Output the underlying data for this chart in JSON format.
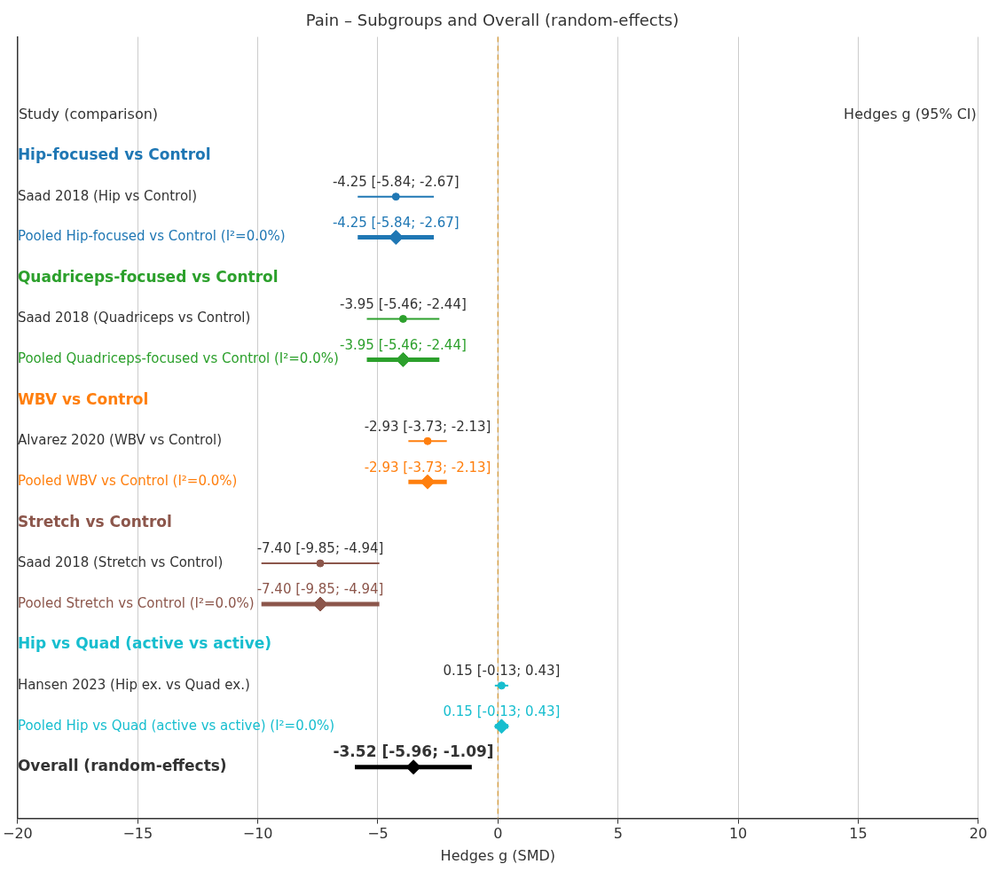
{
  "chart_data": {
    "type": "scatter",
    "orientation": "horizontal",
    "title": "Pain – Subgroups and Overall (random-effects)",
    "xlabel": "Hedges g (SMD)",
    "annotations": [
      "Study (comparison)",
      "Hedges g (95% CI)"
    ],
    "categories": [
      "Hip-focused vs Control",
      "Saad 2018 (Hip vs Control)",
      "Pooled Hip-focused vs Control (I²=0.0%)",
      "Quadriceps-focused vs Control",
      "Saad 2018 (Quadriceps vs Control)",
      "Pooled Quadriceps-focused vs Control (I²=0.0%)",
      "WBV vs Control",
      "Alvarez 2020 (WBV vs Control)",
      "Pooled WBV vs Control (I²=0.0%)",
      "Stretch vs Control",
      "Saad 2018 (Stretch vs Control)",
      "Pooled Stretch vs Control (I²=0.0%)",
      "Hip vs Quad (active vs active)",
      "Hansen 2023 (Hip ex. vs Quad ex.)",
      "Pooled Hip vs Quad (active vs active) (I²=0.0%)",
      "Overall (random-effects)"
    ],
    "series": [
      {
        "marker": "circle",
        "colors": [
          null,
          "#1f77b4",
          null,
          null,
          "#2ca02c",
          null,
          null,
          "#ff7f0e",
          null,
          null,
          "#8c564b",
          null,
          null,
          "#17becf",
          null,
          null
        ],
        "values": [
          null,
          -4.25,
          null,
          null,
          -3.95,
          null,
          null,
          -2.93,
          null,
          null,
          -7.4,
          null,
          null,
          0.15,
          null,
          null
        ],
        "errors": [
          null,
          [
            -5.84,
            -2.67
          ],
          null,
          null,
          [
            -5.46,
            -2.44
          ],
          null,
          null,
          [
            -3.73,
            -2.13
          ],
          null,
          null,
          [
            -9.85,
            -4.94
          ],
          null,
          null,
          [
            -0.13,
            0.43
          ],
          null,
          null
        ],
        "value_labels": [
          null,
          "-4.25 [-5.84; -2.67]",
          null,
          null,
          "-3.95 [-5.46; -2.44]",
          null,
          null,
          "-2.93 [-3.73; -2.13]",
          null,
          null,
          "-7.40 [-9.85; -4.94]",
          null,
          null,
          "0.15 [-0.13; 0.43]",
          null,
          null
        ]
      },
      {
        "marker": "diamond",
        "colors": [
          null,
          null,
          "#1f77b4",
          null,
          null,
          "#2ca02c",
          null,
          null,
          "#ff7f0e",
          null,
          null,
          "#8c564b",
          null,
          null,
          "#17becf",
          null
        ],
        "values": [
          null,
          null,
          -4.25,
          null,
          null,
          -3.95,
          null,
          null,
          -2.93,
          null,
          null,
          -7.4,
          null,
          null,
          0.15,
          null
        ],
        "errors": [
          null,
          null,
          [
            -5.84,
            -2.67
          ],
          null,
          null,
          [
            -5.46,
            -2.44
          ],
          null,
          null,
          [
            -3.73,
            -2.13
          ],
          null,
          null,
          [
            -9.85,
            -4.94
          ],
          null,
          null,
          [
            -0.13,
            0.43
          ],
          null
        ],
        "value_labels": [
          null,
          null,
          "-4.25 [-5.84; -2.67]",
          null,
          null,
          "-3.95 [-5.46; -2.44]",
          null,
          null,
          "-2.93 [-3.73; -2.13]",
          null,
          null,
          "-7.40 [-9.85; -4.94]",
          null,
          null,
          "0.15 [-0.13; 0.43]",
          null
        ]
      },
      {
        "marker": "diamond",
        "colors": [
          null,
          null,
          null,
          null,
          null,
          null,
          null,
          null,
          null,
          null,
          null,
          null,
          null,
          null,
          null,
          "#000000"
        ],
        "values": [
          null,
          null,
          null,
          null,
          null,
          null,
          null,
          null,
          null,
          null,
          null,
          null,
          null,
          null,
          null,
          -3.52
        ],
        "errors": [
          null,
          null,
          null,
          null,
          null,
          null,
          null,
          null,
          null,
          null,
          null,
          null,
          null,
          null,
          null,
          [
            -5.96,
            -1.09
          ]
        ],
        "value_labels": [
          null,
          null,
          null,
          null,
          null,
          null,
          null,
          null,
          null,
          null,
          null,
          null,
          null,
          null,
          null,
          "-3.52 [-5.96; -1.09]"
        ]
      }
    ],
    "xlim": [
      -20,
      20
    ],
    "xticks": [
      {
        "value": -20,
        "label": "−20"
      },
      {
        "value": -15,
        "label": "−15"
      },
      {
        "value": -10,
        "label": "−10"
      },
      {
        "value": -5,
        "label": "−5"
      },
      0,
      5,
      10,
      15,
      20
    ],
    "ref_lines": [
      {
        "axis": "x",
        "value": 0,
        "color": "#d4a04a",
        "line_style": "dashed"
      }
    ],
    "grid": "x",
    "legend": false
  }
}
